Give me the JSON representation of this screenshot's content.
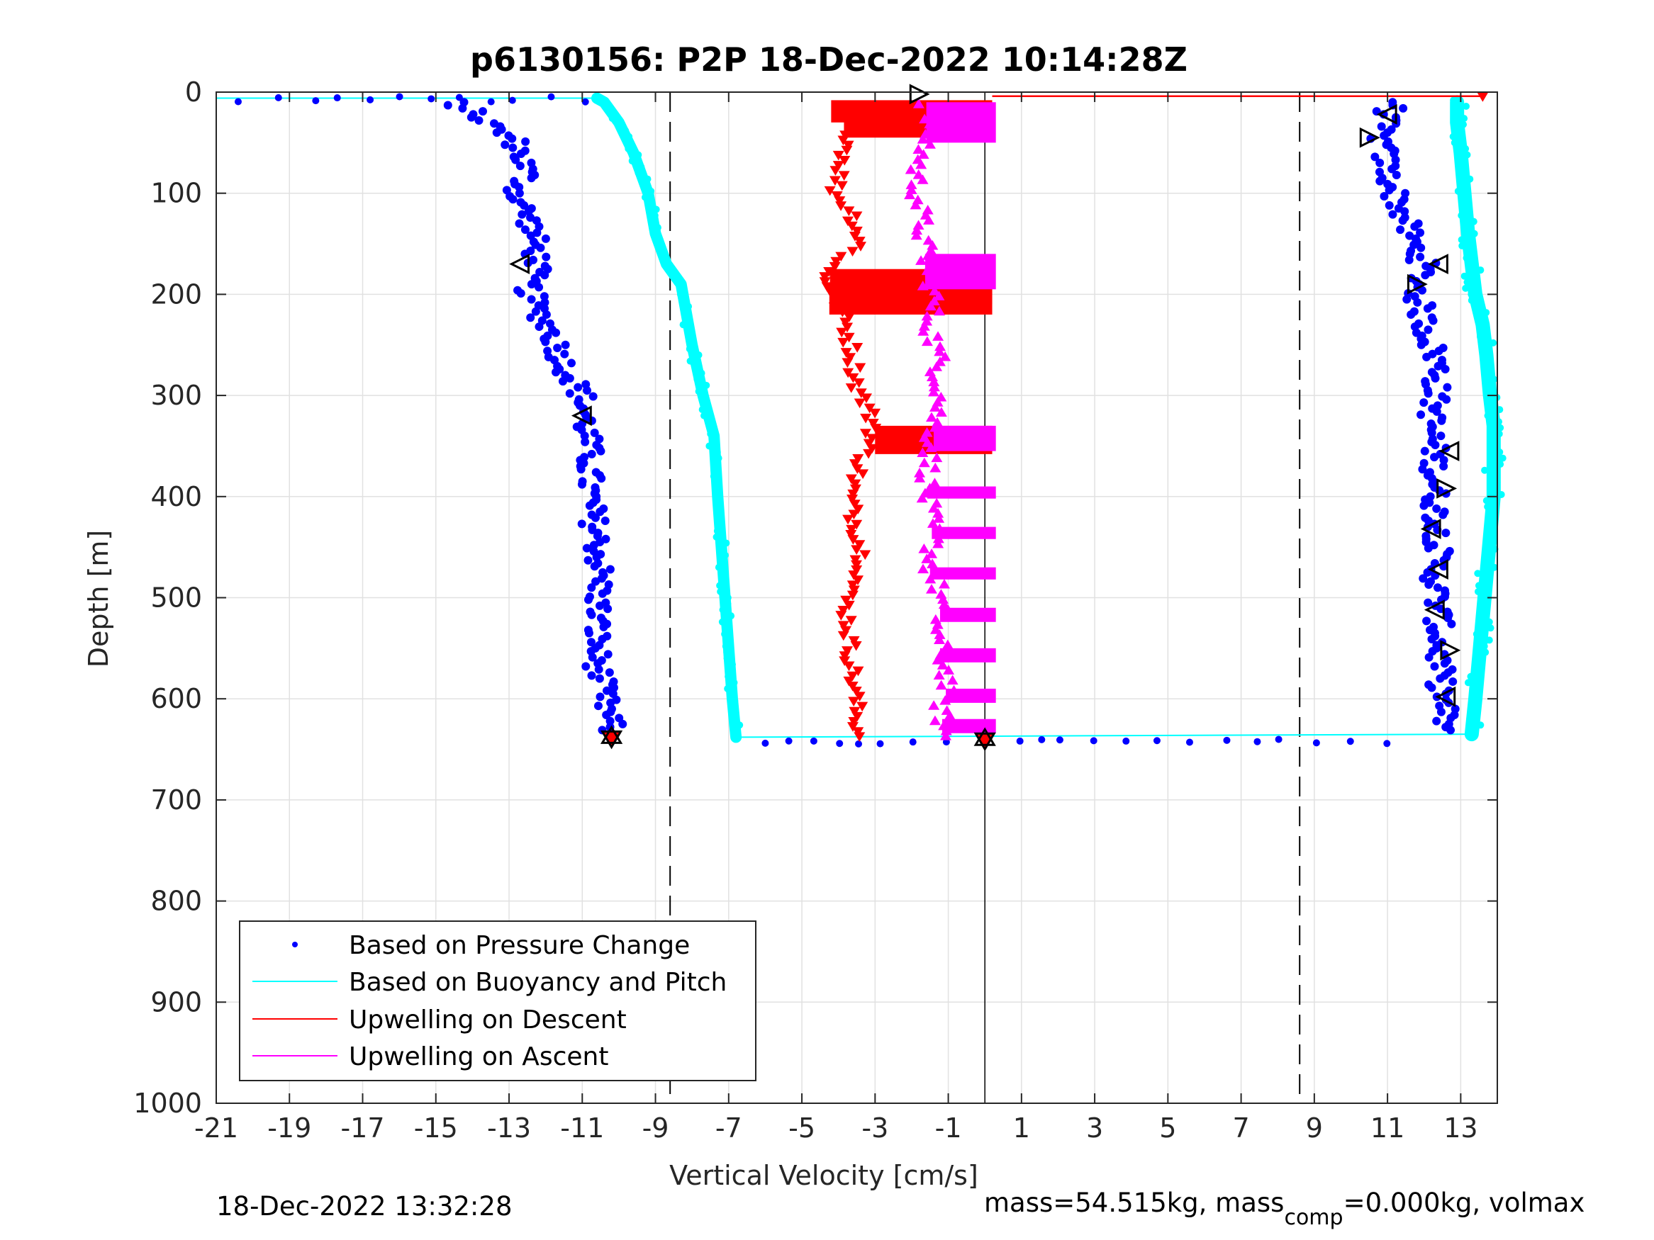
{
  "chart_data": {
    "type": "scatter",
    "title": "p6130156: P2P 18-Dec-2022 10:14:28Z",
    "xlabel": "Vertical Velocity [cm/s]",
    "ylabel": "Depth [m]",
    "xlim": [
      -21,
      14
    ],
    "ylim": [
      1000,
      0
    ],
    "y_reversed": true,
    "grid": true,
    "xticks": [
      "-21",
      "-19",
      "-17",
      "-15",
      "-13",
      "-11",
      "-9",
      "-7",
      "-5",
      "-3",
      "-1",
      "1",
      "3",
      "5",
      "7",
      "9",
      "11",
      "13"
    ],
    "yticks": [
      "0",
      "100",
      "200",
      "300",
      "400",
      "500",
      "600",
      "700",
      "800",
      "900",
      "1000"
    ],
    "reference_lines": {
      "dashed_x": [
        -8.6,
        8.6
      ],
      "solid_x": [
        0.0
      ]
    },
    "legend": {
      "placement": "lower-left",
      "entries": [
        {
          "label": "Based on Pressure Change",
          "color": "#0000ff",
          "marker": "dot"
        },
        {
          "label": "Based on Buoyancy and Pitch",
          "color": "#00ffff",
          "marker": "line"
        },
        {
          "label": "Upwelling on Descent",
          "color": "#ff0000",
          "marker": "line"
        },
        {
          "label": "Upwelling on Ascent",
          "color": "#ff00ff",
          "marker": "line"
        }
      ]
    },
    "series": [
      {
        "name": "Based on Pressure Change",
        "color": "#0000ff",
        "descent_depth": [
          10,
          20,
          30,
          50,
          80,
          100,
          130,
          150,
          170,
          190,
          210,
          240,
          270,
          300,
          330,
          360,
          400,
          440,
          480,
          520,
          560,
          600,
          630
        ],
        "descent_velocity": [
          -14.5,
          -14.0,
          -13.6,
          -12.8,
          -12.5,
          -12.8,
          -12.4,
          -12.3,
          -12.2,
          -12.5,
          -12.3,
          -11.8,
          -11.5,
          -11.0,
          -10.9,
          -10.8,
          -10.8,
          -10.6,
          -10.5,
          -10.6,
          -10.6,
          -10.4,
          -10.2
        ],
        "ascent_depth": [
          630,
          600,
          560,
          520,
          480,
          440,
          400,
          360,
          330,
          300,
          270,
          240,
          200,
          170,
          150,
          130,
          100,
          80,
          60,
          40,
          20,
          10
        ],
        "ascent_velocity": [
          12.6,
          12.5,
          12.4,
          12.4,
          12.3,
          12.4,
          12.3,
          12.3,
          12.2,
          12.3,
          12.4,
          12.1,
          11.8,
          12.0,
          11.7,
          11.5,
          11.2,
          11.0,
          10.9,
          10.8,
          11.0,
          11.3
        ]
      },
      {
        "name": "Based on Buoyancy and Pitch",
        "color": "#00ffff",
        "descent_depth": [
          6,
          10,
          30,
          60,
          100,
          140,
          170,
          190,
          250,
          300,
          340,
          400,
          450,
          500,
          550,
          600,
          638
        ],
        "descent_velocity": [
          -10.6,
          -10.4,
          -10.0,
          -9.6,
          -9.2,
          -9.0,
          -8.7,
          -8.3,
          -8.0,
          -7.7,
          -7.4,
          -7.3,
          -7.2,
          -7.1,
          -7.0,
          -6.9,
          -6.8
        ],
        "ascent_depth": [
          635,
          600,
          560,
          520,
          480,
          440,
          400,
          360,
          330,
          300,
          260,
          230,
          200,
          170,
          140,
          100,
          60,
          30,
          10
        ],
        "ascent_velocity": [
          13.3,
          13.4,
          13.5,
          13.6,
          13.7,
          13.8,
          13.9,
          13.9,
          13.9,
          13.8,
          13.7,
          13.6,
          13.4,
          13.3,
          13.2,
          13.1,
          13.0,
          12.9,
          12.9
        ]
      },
      {
        "name": "Upwelling on Descent",
        "color": "#ff0000",
        "depth": [
          10,
          30,
          60,
          100,
          120,
          150,
          180,
          200,
          230,
          260,
          290,
          330,
          360,
          400,
          430,
          470,
          500,
          540,
          580,
          620,
          640
        ],
        "velocity": [
          -4.2,
          -3.5,
          -3.8,
          -4.1,
          -3.6,
          -3.4,
          -4.4,
          -4.1,
          -3.8,
          -3.6,
          -3.5,
          -3.0,
          -3.3,
          -3.7,
          -3.5,
          -3.3,
          -3.8,
          -3.7,
          -3.6,
          -3.5,
          -3.4
        ]
      },
      {
        "name": "Upwelling on Ascent",
        "color": "#ff00ff",
        "depth": [
          640,
          610,
          580,
          540,
          500,
          470,
          440,
          400,
          360,
          330,
          300,
          260,
          230,
          200,
          170,
          140,
          110,
          80,
          50,
          20,
          10
        ],
        "velocity": [
          -1.1,
          -1.2,
          -1.0,
          -1.3,
          -1.2,
          -1.5,
          -1.4,
          -1.6,
          -1.5,
          -1.4,
          -1.2,
          -1.3,
          -1.5,
          -1.4,
          -1.6,
          -1.7,
          -1.8,
          -1.9,
          -1.6,
          -1.5,
          -1.6
        ]
      }
    ],
    "markers": {
      "turn_descent": {
        "depth": 638,
        "velocity": -10.2
      },
      "turn_ascent": {
        "depth": 640,
        "velocity": 0.0
      },
      "start": {
        "depth": 2,
        "velocity": -1.8
      }
    }
  },
  "footer": {
    "timestamp": "18-Dec-2022 13:32:28",
    "mass_prefix": "mass=54.515kg, mass",
    "mass_sub": "comp",
    "mass_suffix": "=0.000kg, volmax"
  }
}
